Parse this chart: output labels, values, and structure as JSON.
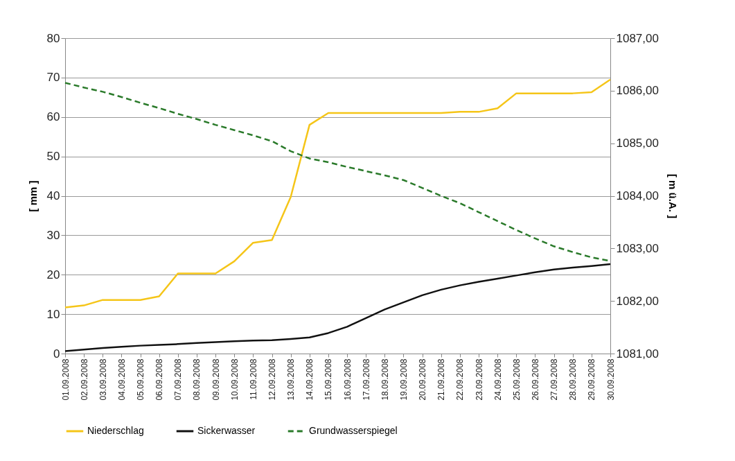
{
  "chart_data": {
    "type": "line",
    "ylabel": "[ mm ]",
    "y2label": "[ m ü.A. ]",
    "categories": [
      "01.09.2008",
      "02.09.2008",
      "03.09.2008",
      "04.09.2008",
      "05.09.2008",
      "06.09.2008",
      "07.09.2008",
      "08.09.2008",
      "09.09.2008",
      "10.09.2008",
      "11.09.2008",
      "12.09.2008",
      "13.09.2008",
      "14.09.2008",
      "15.09.2008",
      "16.09.2008",
      "17.09.2008",
      "18.09.2008",
      "19.09.2008",
      "20.09.2008",
      "21.09.2008",
      "22.09.2008",
      "23.09.2008",
      "24.09.2008",
      "25.09.2008",
      "26.09.2008",
      "27.09.2008",
      "28.09.2008",
      "29.09.2008",
      "30.09.2008"
    ],
    "series": [
      {
        "name": "Niederschlag",
        "color": "#f5c518",
        "line_style": "solid",
        "values": [
          11.7,
          12.2,
          13.6,
          13.6,
          13.6,
          14.5,
          20.3,
          20.3,
          20.3,
          23.4,
          28.1,
          28.8,
          39.7,
          58,
          61,
          61,
          61,
          61,
          61,
          61,
          61,
          61.3,
          61.3,
          62.2,
          66,
          66,
          66,
          66,
          66.3,
          69.5
        ]
      },
      {
        "name": "Sickerwasser",
        "color": "#111111",
        "line_style": "solid",
        "values": [
          0.6,
          1.0,
          1.4,
          1.7,
          2.0,
          2.2,
          2.4,
          2.7,
          2.9,
          3.1,
          3.3,
          3.4,
          3.7,
          4.1,
          5.2,
          6.8,
          9.0,
          11.2,
          13.0,
          14.8,
          16.2,
          17.3,
          18.2,
          19.0,
          19.8,
          20.6,
          21.3,
          21.8,
          22.2,
          22.7
        ]
      },
      {
        "name": "Grundwasserspiegel",
        "color": "#2a7a2a",
        "line_style": "dashed",
        "axis": "y2",
        "values": [
          1086.15,
          1086.06,
          1085.98,
          1085.88,
          1085.77,
          1085.67,
          1085.56,
          1085.46,
          1085.35,
          1085.25,
          1085.15,
          1085.04,
          1084.85,
          1084.71,
          1084.64,
          1084.55,
          1084.47,
          1084.39,
          1084.3,
          1084.15,
          1084.0,
          1083.86,
          1083.69,
          1083.52,
          1083.35,
          1083.19,
          1083.04,
          1082.93,
          1082.83,
          1082.76
        ]
      }
    ],
    "ylim": [
      0,
      80
    ],
    "yticks": [
      0,
      10,
      20,
      30,
      40,
      50,
      60,
      70,
      80
    ],
    "y2lim": [
      1081,
      1087
    ],
    "y2ticks": [
      {
        "value": 1081,
        "label": "1081,00"
      },
      {
        "value": 1082,
        "label": "1082,00"
      },
      {
        "value": 1083,
        "label": "1083,00"
      },
      {
        "value": 1084,
        "label": "1084,00"
      },
      {
        "value": 1085,
        "label": "1085,00"
      },
      {
        "value": 1086,
        "label": "1086,00"
      },
      {
        "value": 1087,
        "label": "1087,00"
      }
    ],
    "grid": "y",
    "legend": "bottom"
  }
}
